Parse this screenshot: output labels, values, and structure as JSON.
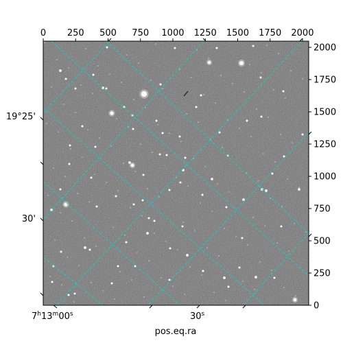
{
  "figure": {
    "axis_label_bottom": "pos.eq.ra",
    "top_ticks": [
      "0",
      "250",
      "500",
      "750",
      "1000",
      "1250",
      "1500",
      "1750",
      "2000"
    ],
    "right_ticks": [
      "0",
      "250",
      "500",
      "750",
      "1000",
      "1250",
      "1500",
      "1750",
      "2000"
    ],
    "ra_labels": [
      {
        "hours": "7",
        "hsup": "h",
        "minutes": "13",
        "msup": "m",
        "seconds": "00",
        "ssup": "s"
      },
      {
        "seconds": "30",
        "ssup": "s"
      }
    ],
    "dec_labels": [
      "19°25'",
      "30'"
    ],
    "colors": {
      "grid": "#00d8d8",
      "sky_background": "#6e6e6e",
      "axis": "#000000"
    },
    "grid_style": "dashed"
  }
}
